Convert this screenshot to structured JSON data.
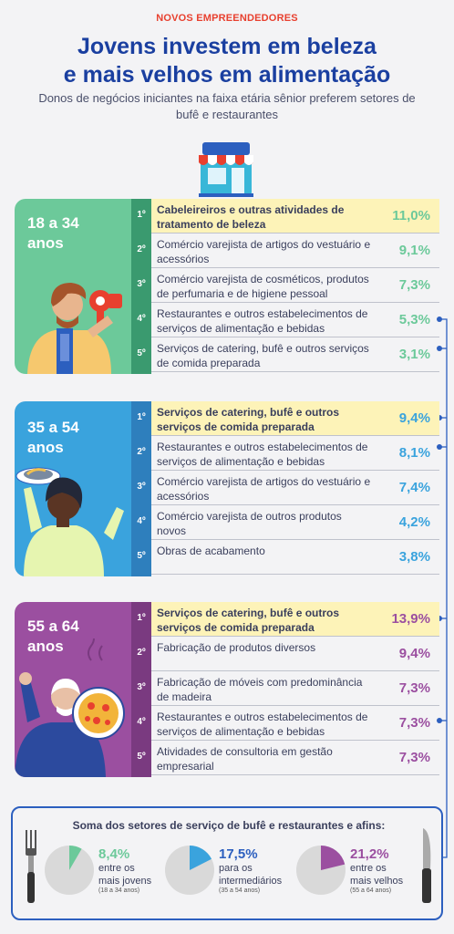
{
  "header": {
    "kicker": "NOVOS EMPREENDEDORES",
    "title_line1": "Jovens investem em beleza",
    "title_line2": "e mais velhos em alimentação",
    "subtitle": "Donos de negócios iniciantes na faixa etária sênior preferem setores de bufê e restaurantes"
  },
  "colors": {
    "green": "#6cc99a",
    "blue": "#3aa3dd",
    "purple": "#9b4fa0",
    "highlight": "#fdf3b8",
    "accent_red": "#e8402f",
    "title_blue": "#1a3fa0",
    "connector": "#2c5fbf"
  },
  "chart_data": [
    {
      "type": "table",
      "group": "18 a 34 anos",
      "categories": [
        "Cabeleireiros e outras atividades de tratamento de beleza",
        "Comércio varejista de artigos do vestuário e acessórios",
        "Comércio varejista de cosméticos, produtos de perfumaria e de higiene pessoal",
        "Restaurantes e outros estabelecimentos de serviços de alimentação e bebidas",
        "Serviços de catering, bufê e outros serviços de comida preparada"
      ],
      "values": [
        11.0,
        9.1,
        7.3,
        5.3,
        3.1
      ]
    },
    {
      "type": "table",
      "group": "35 a 54 anos",
      "categories": [
        "Serviços de catering, bufê e outros serviços de comida preparada",
        "Restaurantes e outros estabelecimentos de serviços de alimentação e bebidas",
        "Comércio varejista de artigos do vestuário e acessórios",
        "Comércio varejista de outros produtos novos",
        "Obras de acabamento"
      ],
      "values": [
        9.4,
        8.1,
        7.4,
        4.2,
        3.8
      ]
    },
    {
      "type": "table",
      "group": "55 a 64 anos",
      "categories": [
        "Serviços de catering, bufê e outros serviços de comida preparada",
        "Fabricação de produtos diversos",
        "Fabricação de móveis com predominância de madeira",
        "Restaurantes e outros estabelecimentos de serviços de alimentação e bebidas",
        "Atividades de consultoria em gestão empresarial"
      ],
      "values": [
        13.9,
        9.4,
        7.3,
        7.3,
        7.3
      ]
    },
    {
      "type": "pie",
      "title": "Soma dos setores de serviço de bufê e restaurantes e afins:",
      "categories": [
        "entre os mais jovens",
        "para os intermediários",
        "entre os mais velhos"
      ],
      "values": [
        8.4,
        17.5,
        21.2
      ]
    }
  ],
  "sections": [
    {
      "color": "#6cc99a",
      "age1": "18 a 34",
      "age2": "anos",
      "rows": [
        {
          "rank": "1º",
          "text": "Cabeleireiros e outras atividades de tratamento de beleza",
          "pct": "11,0%",
          "hl": true
        },
        {
          "rank": "2º",
          "text": "Comércio varejista de artigos do vestuário e acessórios",
          "pct": "9,1%",
          "hl": false
        },
        {
          "rank": "3º",
          "text": "Comércio varejista de cosméticos, produtos de perfumaria e de higiene pessoal",
          "pct": "7,3%",
          "hl": false
        },
        {
          "rank": "4º",
          "text": "Restaurantes e outros estabelecimentos de serviços de alimentação e bebidas",
          "pct": "5,3%",
          "hl": false
        },
        {
          "rank": "5º",
          "text": "Serviços de catering, bufê e outros serviços de comida preparada",
          "pct": "3,1%",
          "hl": false
        }
      ]
    },
    {
      "color": "#3aa3dd",
      "age1": "35 a 54",
      "age2": "anos",
      "rows": [
        {
          "rank": "1º",
          "text": "Serviços de catering, bufê e  outros serviços de comida preparada",
          "pct": "9,4%",
          "hl": true
        },
        {
          "rank": "2º",
          "text": "Restaurantes e outros  estabelecimentos de serviços de alimentação e bebidas",
          "pct": "8,1%",
          "hl": false
        },
        {
          "rank": "3º",
          "text": "Comércio varejista de  artigos do vestuário e acessórios",
          "pct": "7,4%",
          "hl": false
        },
        {
          "rank": "4º",
          "text": "Comércio varejista de outros produtos novos",
          "pct": "4,2%",
          "hl": false
        },
        {
          "rank": "5º",
          "text": "Obras de acabamento",
          "pct": "3,8%",
          "hl": false
        }
      ]
    },
    {
      "color": "#9b4fa0",
      "age1": "55 a 64",
      "age2": "anos",
      "rows": [
        {
          "rank": "1º",
          "text": "Serviços de catering, bufê e outros serviços de comida preparada",
          "pct": "13,9%",
          "hl": true
        },
        {
          "rank": "2º",
          "text": "Fabricação de produtos diversos",
          "pct": "9,4%",
          "hl": false
        },
        {
          "rank": "3º",
          "text": "Fabricação de móveis com predominância de madeira",
          "pct": "7,3%",
          "hl": false
        },
        {
          "rank": "4º",
          "text": "Restaurantes e outros estabelecimentos de serviços de alimentação e bebidas",
          "pct": "7,3%",
          "hl": false
        },
        {
          "rank": "5º",
          "text": "Atividades de consultoria em gestão empresarial",
          "pct": "7,3%",
          "hl": false
        }
      ]
    }
  ],
  "summary": {
    "title": "Soma dos setores de serviço de bufê e restaurantes e afins:",
    "items": [
      {
        "pct": "8,4%",
        "l1": "entre os",
        "l2": "mais jovens",
        "range": "(18 a 34 anos)",
        "color": "#6cc99a",
        "value": 8.4
      },
      {
        "pct": "17,5%",
        "l1": "para os",
        "l2": "intermediários",
        "range": "(35 a 54 anos)",
        "color": "#3aa3dd",
        "value": 17.5
      },
      {
        "pct": "21,2%",
        "l1": "entre os",
        "l2": "mais velhos",
        "range": "(55 a 64 anos)",
        "color": "#9b4fa0",
        "value": 21.2
      }
    ]
  }
}
